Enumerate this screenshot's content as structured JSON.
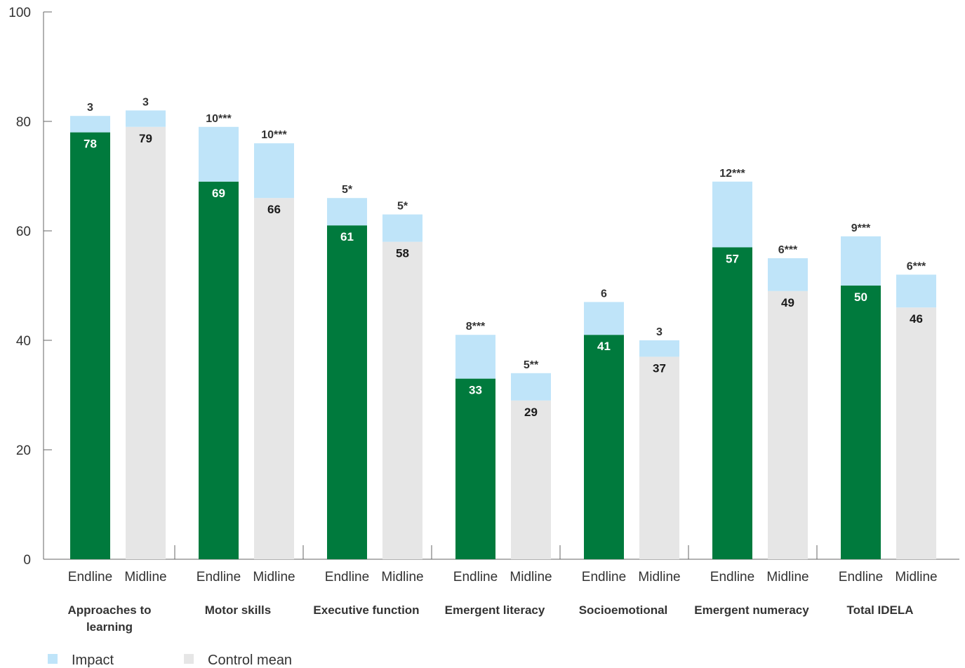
{
  "chart_data": {
    "type": "bar",
    "stacked": true,
    "ylim": [
      0,
      100
    ],
    "yticks": [
      "0",
      "20",
      "40",
      "60",
      "80",
      "100"
    ],
    "grid": false,
    "legend_position": "bottom-left",
    "bar_labels": [
      "Endline",
      "Midline"
    ],
    "colors": {
      "endline_base": "#007a3d",
      "midline_base": "#e6e6e6",
      "impact": "#bfe4f9",
      "axis": "#666666"
    },
    "legend": [
      {
        "label": "Impact",
        "color": "#bfe4f9"
      },
      {
        "label": "Control mean",
        "color": "#e6e6e6"
      }
    ],
    "groups": [
      {
        "category": [
          "Approaches to",
          "learning"
        ],
        "endline": {
          "base": 78,
          "impact": 3,
          "impact_label": "3"
        },
        "midline": {
          "base": 79,
          "impact": 3,
          "impact_label": "3"
        }
      },
      {
        "category": [
          "Motor skills"
        ],
        "endline": {
          "base": 69,
          "impact": 10,
          "impact_label": "10***"
        },
        "midline": {
          "base": 66,
          "impact": 10,
          "impact_label": "10***"
        }
      },
      {
        "category": [
          "Executive function"
        ],
        "endline": {
          "base": 61,
          "impact": 5,
          "impact_label": "5*"
        },
        "midline": {
          "base": 58,
          "impact": 5,
          "impact_label": "5*"
        }
      },
      {
        "category": [
          "Emergent literacy"
        ],
        "endline": {
          "base": 33,
          "impact": 8,
          "impact_label": "8***"
        },
        "midline": {
          "base": 29,
          "impact": 5,
          "impact_label": "5**"
        }
      },
      {
        "category": [
          "Socioemotional"
        ],
        "endline": {
          "base": 41,
          "impact": 6,
          "impact_label": "6"
        },
        "midline": {
          "base": 37,
          "impact": 3,
          "impact_label": "3"
        }
      },
      {
        "category": [
          "Emergent numeracy"
        ],
        "endline": {
          "base": 57,
          "impact": 12,
          "impact_label": "12***"
        },
        "midline": {
          "base": 49,
          "impact": 6,
          "impact_label": "6***"
        }
      },
      {
        "category": [
          "Total IDELA"
        ],
        "endline": {
          "base": 50,
          "impact": 9,
          "impact_label": "9***"
        },
        "midline": {
          "base": 46,
          "impact": 6,
          "impact_label": "6***"
        }
      }
    ]
  }
}
